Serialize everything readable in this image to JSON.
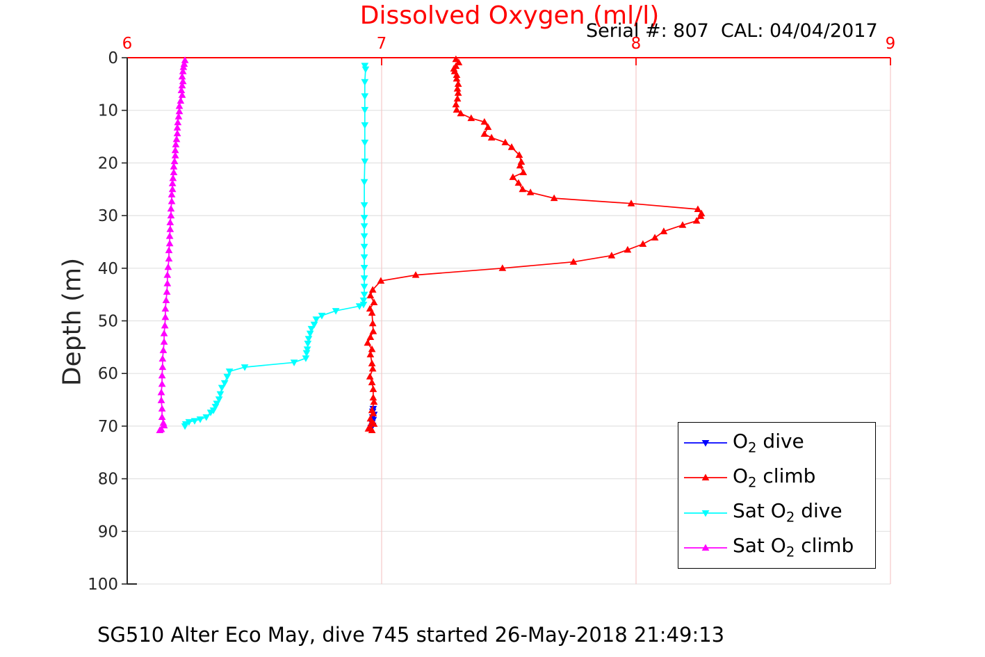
{
  "header": {
    "title": "Dissolved Oxygen (ml/l)",
    "subtitle": "Serial #: 807  CAL: 04/04/2017"
  },
  "footer": {
    "caption": "SG510 Alter Eco May, dive 745 started 26-May-2018 21:49:13"
  },
  "colors": {
    "title": "#ff0000",
    "x_axis": "#ff0000",
    "y_axis": "#262626",
    "grid_horizontal": "#e2e2e2",
    "grid_vertical": "#f5c9c9",
    "text": "#000000"
  },
  "chart_data": {
    "type": "line",
    "title": "Dissolved Oxygen (ml/l)",
    "xlabel": "",
    "ylabel": "Depth (m)",
    "xlim": [
      6,
      9
    ],
    "ylim": [
      0,
      100
    ],
    "y_inverted": true,
    "x_axis_location": "top",
    "x_ticks": [
      6,
      7,
      8,
      9
    ],
    "y_ticks": [
      0,
      10,
      20,
      30,
      40,
      50,
      60,
      70,
      80,
      90,
      100
    ],
    "grid": true,
    "legend_position": "lower-right",
    "series": [
      {
        "name": "o2-dive",
        "label": {
          "prefix": "O",
          "sub": "2",
          "suffix": " dive"
        },
        "color": "#0000ff",
        "marker": "triangle-down",
        "points": [
          [
            6.967,
            66.7
          ],
          [
            6.965,
            67.2
          ],
          [
            6.97,
            67.8
          ],
          [
            6.965,
            68.3
          ],
          [
            6.967,
            68.8
          ],
          [
            6.962,
            69.4
          ],
          [
            6.965,
            69.9
          ],
          [
            6.959,
            70.3
          ]
        ]
      },
      {
        "name": "o2-climb",
        "label": {
          "prefix": "O",
          "sub": "2",
          "suffix": " climb"
        },
        "color": "#ff0000",
        "marker": "triangle-up",
        "points": [
          [
            7.292,
            0.3
          ],
          [
            7.303,
            0.9
          ],
          [
            7.292,
            1.6
          ],
          [
            7.284,
            2.1
          ],
          [
            7.287,
            2.6
          ],
          [
            7.295,
            3.3
          ],
          [
            7.295,
            4.0
          ],
          [
            7.301,
            5.0
          ],
          [
            7.298,
            5.9
          ],
          [
            7.301,
            6.7
          ],
          [
            7.298,
            7.8
          ],
          [
            7.292,
            8.9
          ],
          [
            7.295,
            9.9
          ],
          [
            7.311,
            10.6
          ],
          [
            7.352,
            11.5
          ],
          [
            7.404,
            12.2
          ],
          [
            7.418,
            13.2
          ],
          [
            7.404,
            14.5
          ],
          [
            7.432,
            15.2
          ],
          [
            7.486,
            16.1
          ],
          [
            7.511,
            17.0
          ],
          [
            7.541,
            18.5
          ],
          [
            7.549,
            19.8
          ],
          [
            7.544,
            20.5
          ],
          [
            7.557,
            21.8
          ],
          [
            7.516,
            22.7
          ],
          [
            7.538,
            23.8
          ],
          [
            7.554,
            25.0
          ],
          [
            7.585,
            25.6
          ],
          [
            7.678,
            26.7
          ],
          [
            7.981,
            27.7
          ],
          [
            8.243,
            28.8
          ],
          [
            8.257,
            29.6
          ],
          [
            8.254,
            30.1
          ],
          [
            8.238,
            31.0
          ],
          [
            8.183,
            31.8
          ],
          [
            8.109,
            33.0
          ],
          [
            8.074,
            34.2
          ],
          [
            8.027,
            35.4
          ],
          [
            7.967,
            36.5
          ],
          [
            7.904,
            37.6
          ],
          [
            7.754,
            38.8
          ],
          [
            7.475,
            40.0
          ],
          [
            7.134,
            41.3
          ],
          [
            6.997,
            42.4
          ],
          [
            6.965,
            44.1
          ],
          [
            6.956,
            45.2
          ],
          [
            6.97,
            46.5
          ],
          [
            6.954,
            47.7
          ],
          [
            6.962,
            48.5
          ],
          [
            6.965,
            50.5
          ],
          [
            6.967,
            52.0
          ],
          [
            6.956,
            53.1
          ],
          [
            6.945,
            54.2
          ],
          [
            6.962,
            55.4
          ],
          [
            6.956,
            56.4
          ],
          [
            6.962,
            58.1
          ],
          [
            6.965,
            59.1
          ],
          [
            6.954,
            60.6
          ],
          [
            6.962,
            61.7
          ],
          [
            6.967,
            63.0
          ],
          [
            6.967,
            64.6
          ],
          [
            6.97,
            65.4
          ],
          [
            6.962,
            67.0
          ],
          [
            6.967,
            67.6
          ],
          [
            6.956,
            68.6
          ],
          [
            6.962,
            69.2
          ],
          [
            6.97,
            69.6
          ],
          [
            6.954,
            70.2
          ],
          [
            6.948,
            70.5
          ],
          [
            6.962,
            70.8
          ]
        ]
      },
      {
        "name": "sat-o2-dive",
        "label": {
          "prefix": "Sat O",
          "sub": "2",
          "suffix": " dive"
        },
        "color": "#00ffff",
        "marker": "triangle-down",
        "points": [
          [
            6.934,
            1.5
          ],
          [
            6.937,
            2.2
          ],
          [
            6.934,
            4.6
          ],
          [
            6.934,
            7.3
          ],
          [
            6.934,
            9.9
          ],
          [
            6.934,
            12.8
          ],
          [
            6.934,
            16.1
          ],
          [
            6.934,
            19.7
          ],
          [
            6.932,
            23.6
          ],
          [
            6.932,
            28.0
          ],
          [
            6.932,
            30.4
          ],
          [
            6.932,
            32.0
          ],
          [
            6.932,
            33.9
          ],
          [
            6.932,
            35.9
          ],
          [
            6.932,
            37.9
          ],
          [
            6.932,
            39.9
          ],
          [
            6.932,
            41.9
          ],
          [
            6.932,
            43.5
          ],
          [
            6.932,
            45.0
          ],
          [
            6.929,
            46.1
          ],
          [
            6.929,
            46.9
          ],
          [
            6.913,
            47.2
          ],
          [
            6.82,
            48.1
          ],
          [
            6.765,
            49.0
          ],
          [
            6.743,
            49.7
          ],
          [
            6.735,
            50.7
          ],
          [
            6.724,
            51.5
          ],
          [
            6.719,
            52.4
          ],
          [
            6.713,
            53.4
          ],
          [
            6.71,
            54.3
          ],
          [
            6.708,
            55.4
          ],
          [
            6.705,
            56.1
          ],
          [
            6.702,
            57.1
          ],
          [
            6.656,
            57.9
          ],
          [
            6.462,
            58.8
          ],
          [
            6.402,
            59.6
          ],
          [
            6.393,
            60.6
          ],
          [
            6.383,
            61.8
          ],
          [
            6.372,
            62.7
          ],
          [
            6.366,
            63.9
          ],
          [
            6.361,
            64.9
          ],
          [
            6.352,
            65.7
          ],
          [
            6.347,
            66.3
          ],
          [
            6.339,
            67.0
          ],
          [
            6.328,
            67.4
          ],
          [
            6.311,
            68.3
          ],
          [
            6.287,
            68.7
          ],
          [
            6.265,
            69.0
          ],
          [
            6.243,
            69.2
          ],
          [
            6.23,
            69.6
          ],
          [
            6.227,
            70.0
          ]
        ]
      },
      {
        "name": "sat-o2-climb",
        "label": {
          "prefix": "Sat O",
          "sub": "2",
          "suffix": " climb"
        },
        "color": "#ff00ff",
        "marker": "triangle-up",
        "points": [
          [
            6.227,
            0.5
          ],
          [
            6.224,
            1.2
          ],
          [
            6.221,
            1.8
          ],
          [
            6.219,
            2.6
          ],
          [
            6.216,
            3.6
          ],
          [
            6.219,
            4.5
          ],
          [
            6.216,
            5.3
          ],
          [
            6.213,
            6.2
          ],
          [
            6.216,
            7.1
          ],
          [
            6.21,
            8.2
          ],
          [
            6.205,
            9.2
          ],
          [
            6.205,
            10.2
          ],
          [
            6.202,
            11.2
          ],
          [
            6.199,
            12.3
          ],
          [
            6.197,
            13.3
          ],
          [
            6.197,
            14.4
          ],
          [
            6.194,
            15.5
          ],
          [
            6.191,
            16.5
          ],
          [
            6.189,
            17.6
          ],
          [
            6.189,
            18.6
          ],
          [
            6.186,
            19.7
          ],
          [
            6.183,
            20.7
          ],
          [
            6.183,
            21.8
          ],
          [
            6.18,
            22.9
          ],
          [
            6.178,
            23.9
          ],
          [
            6.178,
            25.0
          ],
          [
            6.175,
            26.0
          ],
          [
            6.175,
            27.3
          ],
          [
            6.172,
            28.7
          ],
          [
            6.172,
            30.0
          ],
          [
            6.169,
            31.3
          ],
          [
            6.169,
            32.6
          ],
          [
            6.167,
            33.9
          ],
          [
            6.167,
            35.3
          ],
          [
            6.164,
            36.6
          ],
          [
            6.164,
            38.2
          ],
          [
            6.161,
            39.8
          ],
          [
            6.158,
            41.3
          ],
          [
            6.158,
            42.9
          ],
          [
            6.156,
            44.5
          ],
          [
            6.153,
            46.1
          ],
          [
            6.15,
            47.7
          ],
          [
            6.15,
            49.3
          ],
          [
            6.148,
            50.9
          ],
          [
            6.145,
            52.4
          ],
          [
            6.145,
            54.0
          ],
          [
            6.142,
            55.6
          ],
          [
            6.139,
            57.2
          ],
          [
            6.139,
            58.8
          ],
          [
            6.137,
            60.4
          ],
          [
            6.137,
            62.0
          ],
          [
            6.134,
            63.6
          ],
          [
            6.134,
            65.1
          ],
          [
            6.137,
            66.7
          ],
          [
            6.137,
            68.3
          ],
          [
            6.142,
            69.4
          ],
          [
            6.145,
            69.9
          ],
          [
            6.134,
            70.6
          ],
          [
            6.128,
            70.8
          ]
        ]
      }
    ]
  }
}
